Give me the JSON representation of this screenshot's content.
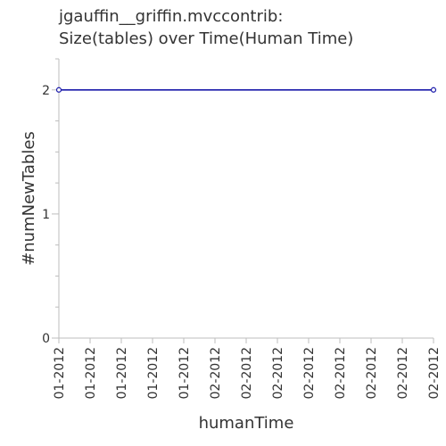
{
  "chart_data": {
    "type": "line",
    "title_lines": [
      "jgauffin__griffin.mvccontrib:",
      "Size(tables) over Time(Human Time)"
    ],
    "xlabel": "humanTime",
    "ylabel": "#numNewTables",
    "x_tick_labels": [
      "01-2012",
      "01-2012",
      "01-2012",
      "01-2012",
      "01-2012",
      "02-2012",
      "02-2012",
      "02-2012",
      "02-2012",
      "02-2012",
      "02-2012",
      "02-2012",
      "02-2012"
    ],
    "y_ticks": [
      0,
      1,
      2
    ],
    "ylim": [
      0,
      2.25
    ],
    "grid": false,
    "series": [
      {
        "color": "#1a1aaa",
        "points": [
          {
            "x": 0,
            "y": 2
          },
          {
            "x": 12,
            "y": 2
          }
        ]
      }
    ]
  }
}
